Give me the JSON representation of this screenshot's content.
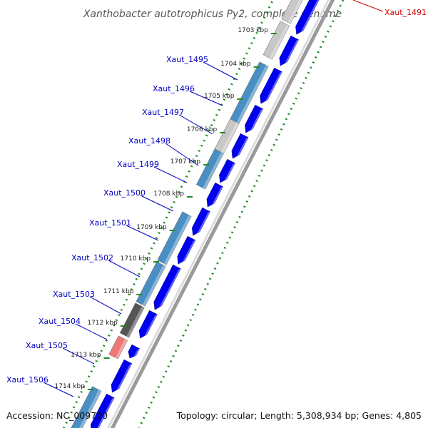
{
  "title": "Xanthobacter autotrophicus Py2, complete genome",
  "accession": "Accession: NC_009720",
  "topology": "Topology: circular; Length: 5,308,934 bp; Genes: 4,805",
  "colors": {
    "forward_gene": "#0000ee",
    "reverse_gene": "#4a8fc4",
    "pseudo_gene": "#c8c8c8",
    "dark_gene": "#555555",
    "rna_gene": "#ee7777",
    "gc_skew": "#228b22",
    "label": "#0000c0",
    "highlight_label": "#d00000"
  },
  "ticks": [
    {
      "label": "1703 kbp"
    },
    {
      "label": "1704 kbp"
    },
    {
      "label": "1705 kbp"
    },
    {
      "label": "1706 kbp"
    },
    {
      "label": "1707 kbp"
    },
    {
      "label": "1708 kbp"
    },
    {
      "label": "1709 kbp"
    },
    {
      "label": "1710 kbp"
    },
    {
      "label": "1711 kbp"
    },
    {
      "label": "1712 kbp"
    },
    {
      "label": "1713 kbp"
    },
    {
      "label": "1714 kbp"
    }
  ],
  "gene_labels": [
    {
      "name": "Xaut_1491",
      "highlight": true
    },
    {
      "name": "Xaut_1495"
    },
    {
      "name": "Xaut_1496"
    },
    {
      "name": "Xaut_1497"
    },
    {
      "name": "Xaut_1498"
    },
    {
      "name": "Xaut_1499"
    },
    {
      "name": "Xaut_1500"
    },
    {
      "name": "Xaut_1501"
    },
    {
      "name": "Xaut_1502"
    },
    {
      "name": "Xaut_1503"
    },
    {
      "name": "Xaut_1504"
    },
    {
      "name": "Xaut_1505"
    },
    {
      "name": "Xaut_1506"
    }
  ]
}
